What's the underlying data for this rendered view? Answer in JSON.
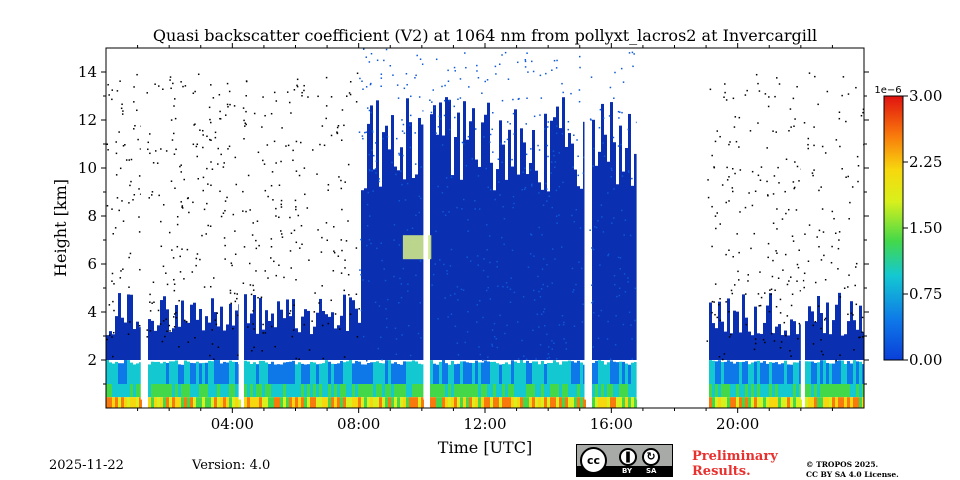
{
  "chart_data": {
    "type": "heatmap",
    "title": "Quasi backscatter coefficient (V2) at 1064 nm from pollyxt_lacros2 at Invercargill",
    "xlabel": "Time [UTC]",
    "ylabel": "Height [km]",
    "xlim_hours": [
      0,
      24
    ],
    "ylim_km": [
      0,
      15
    ],
    "x_ticks": [
      {
        "value": 4,
        "label": "04:00"
      },
      {
        "value": 8,
        "label": "08:00"
      },
      {
        "value": 12,
        "label": "12:00"
      },
      {
        "value": 16,
        "label": "16:00"
      },
      {
        "value": 20,
        "label": "20:00"
      }
    ],
    "y_ticks": [
      {
        "value": 2,
        "label": "2"
      },
      {
        "value": 4,
        "label": "4"
      },
      {
        "value": 6,
        "label": "6"
      },
      {
        "value": 8,
        "label": "8"
      },
      {
        "value": 10,
        "label": "10"
      },
      {
        "value": 12,
        "label": "12"
      },
      {
        "value": 14,
        "label": "14"
      }
    ],
    "colorbar": {
      "min": 0.0,
      "max": 3.0,
      "scale_label": "1e−6",
      "ticks": [
        {
          "value": 0.0,
          "label": "0.00"
        },
        {
          "value": 0.75,
          "label": "0.75"
        },
        {
          "value": 1.5,
          "label": "1.50"
        },
        {
          "value": 2.25,
          "label": "2.25"
        },
        {
          "value": 3.0,
          "label": "3.00"
        }
      ]
    },
    "regions": {
      "data_gaps_hours": [
        [
          1.1,
          1.25
        ],
        [
          4.2,
          4.3
        ],
        [
          10.05,
          10.2
        ],
        [
          15.15,
          15.3
        ],
        [
          16.8,
          19.0
        ],
        [
          22.0,
          22.05
        ]
      ],
      "boundary_layer_top_km": 2.0,
      "cloud_layer": {
        "time_hours": [
          9.4,
          10.3
        ],
        "height_km": [
          6.2,
          7.2
        ],
        "value_e6": 1.5
      }
    }
  },
  "footer": {
    "date": "2025-11-22",
    "version": "Version: 4.0",
    "preliminary_line1": "Preliminary",
    "preliminary_line2": "Results.",
    "copyright_line1": "© TROPOS 2025.",
    "copyright_line2": "CC BY SA 4.0 License.",
    "cc_label_by": "BY",
    "cc_label_sa": "SA",
    "cc_logo_text": "cc"
  },
  "colors": {
    "background": "#ffffff",
    "preliminary_text": "#e8302e",
    "cc_badge": "#a7aaa6"
  }
}
